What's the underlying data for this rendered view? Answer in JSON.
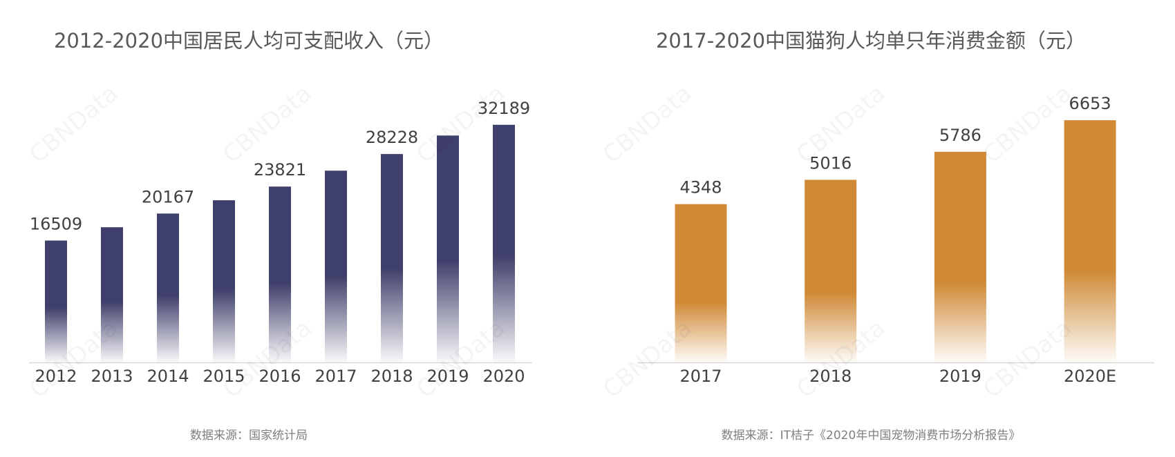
{
  "watermark_text": "CBNData",
  "chart_data": [
    {
      "type": "bar",
      "title": "2012-2020中国居民人均可支配收入（元）",
      "categories": [
        "2012",
        "2013",
        "2014",
        "2015",
        "2016",
        "2017",
        "2018",
        "2019",
        "2020"
      ],
      "values": [
        16509,
        18311,
        20167,
        21966,
        23821,
        25974,
        28228,
        30733,
        32189
      ],
      "data_labels": [
        "16509",
        "",
        "20167",
        "",
        "23821",
        "",
        "28228",
        "",
        "32189"
      ],
      "ylim": [
        0,
        36000
      ],
      "grid": false,
      "legend": "none",
      "bar_color": "#3f3f6b",
      "source": "数据来源：国家统计局"
    },
    {
      "type": "bar",
      "title": "2017-2020中国猫狗人均单只年消费金额（元）",
      "categories": [
        "2017",
        "2018",
        "2019",
        "2020E"
      ],
      "values": [
        4348,
        5016,
        5786,
        6653
      ],
      "data_labels": [
        "4348",
        "5016",
        "5786",
        "6653"
      ],
      "ylim": [
        0,
        7300
      ],
      "grid": false,
      "legend": "none",
      "bar_color": "#d08a36",
      "source": "数据来源：IT桔子《2020年中国宠物消费市场分析报告》"
    }
  ]
}
